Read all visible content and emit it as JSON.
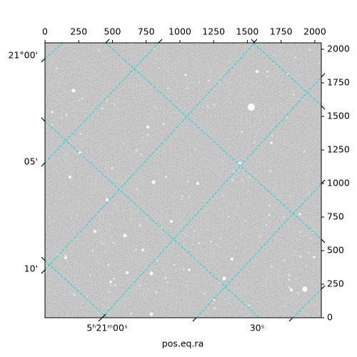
{
  "chart_data": {
    "type": "image",
    "xlabel": "pos.eq.ra",
    "xlim": [
      0,
      2048
    ],
    "xticks": [
      0,
      250,
      500,
      750,
      1000,
      1250,
      1500,
      1750,
      2000
    ],
    "ylim": [
      0,
      2048
    ],
    "yticks": [
      0,
      250,
      500,
      750,
      1000,
      1250,
      1500,
      1750,
      2000
    ],
    "ra_ticks": [
      "5ʰ21ᵐ00ˢ",
      "30ˢ"
    ],
    "dec_ticks": [
      "21°00'",
      "05'",
      "10'"
    ],
    "grid_color": "#00dede"
  }
}
